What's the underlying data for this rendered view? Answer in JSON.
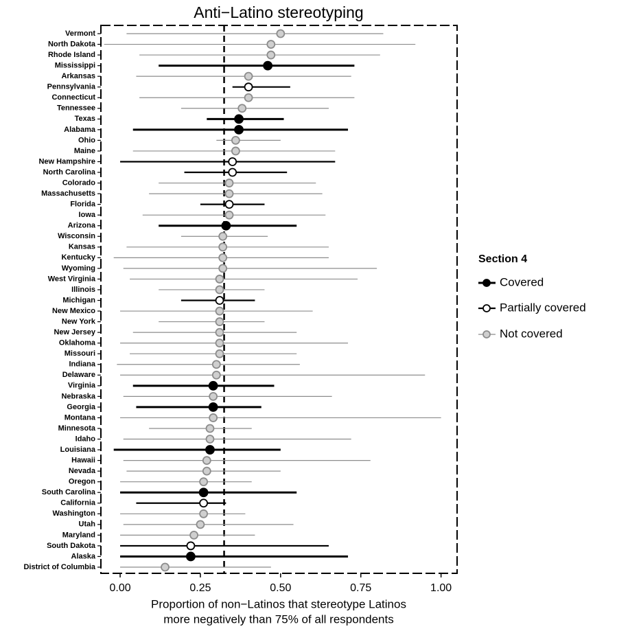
{
  "chart_data": {
    "type": "dot-interval",
    "title": "Anti−Latino stereotyping",
    "xlabel": [
      "Proportion of non−Latinos that stereotype Latinos",
      "more negatively than 75% of all respondents"
    ],
    "legend_title": "Section 4",
    "legend_position": "right",
    "series": [
      {
        "name": "Covered",
        "color": "#000000",
        "fill": "#000000"
      },
      {
        "name": "Partially covered",
        "color": "#000000",
        "fill": "#ffffff"
      },
      {
        "name": "Not covered",
        "color": "#8c8c8c",
        "fill": "#cfcfcf"
      }
    ],
    "categories": [
      "Vermont",
      "North Dakota",
      "Rhode Island",
      "Mississippi",
      "Arkansas",
      "Pennsylvania",
      "Connecticut",
      "Tennessee",
      "Texas",
      "Alabama",
      "Ohio",
      "Maine",
      "New Hampshire",
      "North Carolina",
      "Colorado",
      "Massachusetts",
      "Florida",
      "Iowa",
      "Arizona",
      "Wisconsin",
      "Kansas",
      "Kentucky",
      "Wyoming",
      "West Virginia",
      "Illinois",
      "Michigan",
      "New Mexico",
      "New York",
      "New Jersey",
      "Oklahoma",
      "Missouri",
      "Indiana",
      "Delaware",
      "Virginia",
      "Nebraska",
      "Georgia",
      "Montana",
      "Minnesota",
      "Idaho",
      "Louisiana",
      "Hawaii",
      "Nevada",
      "Oregon",
      "South Carolina",
      "California",
      "Washington",
      "Utah",
      "Maryland",
      "South Dakota",
      "Alaska",
      "District of Columbia"
    ],
    "group": [
      2,
      2,
      2,
      0,
      2,
      1,
      2,
      2,
      0,
      0,
      2,
      2,
      1,
      1,
      2,
      2,
      1,
      2,
      0,
      2,
      2,
      2,
      2,
      2,
      2,
      1,
      2,
      2,
      2,
      2,
      2,
      2,
      2,
      0,
      2,
      0,
      2,
      2,
      2,
      0,
      2,
      2,
      2,
      0,
      1,
      2,
      2,
      2,
      1,
      0,
      2
    ],
    "values": [
      0.5,
      0.47,
      0.47,
      0.46,
      0.4,
      0.4,
      0.4,
      0.38,
      0.37,
      0.37,
      0.36,
      0.36,
      0.35,
      0.35,
      0.34,
      0.34,
      0.34,
      0.34,
      0.33,
      0.32,
      0.32,
      0.32,
      0.32,
      0.31,
      0.31,
      0.31,
      0.31,
      0.31,
      0.31,
      0.31,
      0.31,
      0.3,
      0.3,
      0.29,
      0.29,
      0.29,
      0.29,
      0.28,
      0.28,
      0.28,
      0.27,
      0.27,
      0.26,
      0.26,
      0.26,
      0.26,
      0.25,
      0.23,
      0.22,
      0.22,
      0.14
    ],
    "lower": [
      0.02,
      -0.05,
      0.06,
      0.12,
      0.05,
      0.35,
      0.06,
      0.19,
      0.27,
      0.04,
      0.3,
      0.04,
      0.0,
      0.2,
      0.12,
      0.09,
      0.25,
      0.07,
      0.12,
      0.19,
      0.02,
      -0.02,
      0.01,
      0.03,
      0.12,
      0.19,
      0.0,
      0.12,
      0.04,
      0.0,
      0.03,
      -0.01,
      0.0,
      0.04,
      0.01,
      0.05,
      0.0,
      0.09,
      0.01,
      -0.02,
      0.01,
      0.02,
      0.0,
      0.0,
      0.05,
      0.0,
      0.01,
      0.0,
      0.0,
      0.0,
      0.0
    ],
    "upper": [
      0.82,
      0.92,
      0.81,
      0.73,
      0.72,
      0.53,
      0.73,
      0.65,
      0.51,
      0.71,
      0.5,
      0.67,
      0.67,
      0.52,
      0.61,
      0.63,
      0.45,
      0.64,
      0.55,
      0.46,
      0.65,
      0.65,
      0.8,
      0.74,
      0.45,
      0.42,
      0.6,
      0.45,
      0.55,
      0.71,
      0.55,
      0.56,
      0.95,
      0.48,
      0.66,
      0.44,
      1.0,
      0.41,
      0.72,
      0.5,
      0.78,
      0.5,
      0.41,
      0.55,
      0.33,
      0.39,
      0.54,
      0.42,
      0.65,
      0.71,
      0.47
    ],
    "reference_line": 0.324,
    "xlim": [
      -0.06,
      1.05
    ],
    "xticks": [
      {
        "value": 0,
        "label": "0.00"
      },
      {
        "value": 0.25,
        "label": "0.25"
      },
      {
        "value": 0.5,
        "label": "0.50"
      },
      {
        "value": 0.75,
        "label": "0.75"
      },
      {
        "value": 1,
        "label": "1.00"
      }
    ]
  }
}
